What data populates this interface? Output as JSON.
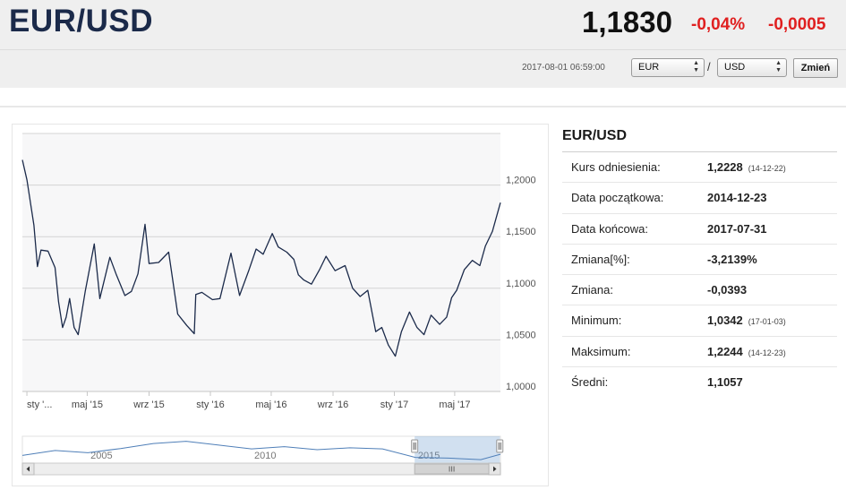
{
  "header": {
    "pair": "EUR/USD",
    "price": "1,1830",
    "change_pct": "-0,04%",
    "change_abs": "-0,0005",
    "timestamp": "2017-08-01 06:59:00",
    "from_currency": "EUR",
    "separator": "/",
    "to_currency": "USD",
    "change_button": "Zmień",
    "accent_color": "#1b2a4a",
    "negative_color": "#e02020"
  },
  "stats": {
    "title": "EUR/USD",
    "rows": [
      {
        "label": "Kurs odniesienia:",
        "value": "1,2228",
        "date": "(14-12-22)"
      },
      {
        "label": "Data początkowa:",
        "value": "2014-12-23",
        "date": ""
      },
      {
        "label": "Data końcowa:",
        "value": "2017-07-31",
        "date": ""
      },
      {
        "label": "Zmiana[%]:",
        "value": "-3,2139%",
        "date": ""
      },
      {
        "label": "Zmiana:",
        "value": "-0,0393",
        "date": ""
      },
      {
        "label": "Minimum:",
        "value": "1,0342",
        "date": "(17-01-03)"
      },
      {
        "label": "Maksimum:",
        "value": "1,2244",
        "date": "(14-12-23)"
      },
      {
        "label": "Średni:",
        "value": "1,1057",
        "date": ""
      }
    ]
  },
  "chart_data": {
    "type": "line",
    "series_color": "#1b2a4a",
    "grid": true,
    "ylim": [
      1.0,
      1.25
    ],
    "y_ticks": [
      "1,0000",
      "1,0500",
      "1,1000",
      "1,1500",
      "1,2000"
    ],
    "y_tick_values": [
      1.0,
      1.05,
      1.1,
      1.15,
      1.2
    ],
    "x_ticks": [
      "sty '...",
      "maj '15",
      "wrz '15",
      "sty '16",
      "maj '16",
      "wrz '16",
      "sty '17",
      "maj '17"
    ],
    "x_tick_dates": [
      "2015-01-01",
      "2015-05-01",
      "2015-09-01",
      "2016-01-01",
      "2016-05-01",
      "2016-09-01",
      "2017-01-01",
      "2017-05-01"
    ],
    "x_start": "2014-12-23",
    "x_end": "2017-07-31",
    "series": [
      {
        "dates": [
          "2014-12-23",
          "2015-01-01",
          "2015-01-08",
          "2015-01-15",
          "2015-01-22",
          "2015-01-29",
          "2015-02-12",
          "2015-02-26",
          "2015-03-05",
          "2015-03-13",
          "2015-03-20",
          "2015-03-27",
          "2015-04-05",
          "2015-04-13",
          "2015-04-27",
          "2015-05-15",
          "2015-05-26",
          "2015-06-15",
          "2015-06-28",
          "2015-07-15",
          "2015-07-28",
          "2015-08-10",
          "2015-08-24",
          "2015-09-01",
          "2015-09-20",
          "2015-10-10",
          "2015-10-28",
          "2015-11-15",
          "2015-11-30",
          "2015-12-03",
          "2015-12-15",
          "2016-01-05",
          "2016-01-20",
          "2016-02-11",
          "2016-02-28",
          "2016-03-18",
          "2016-04-01",
          "2016-04-15",
          "2016-05-03",
          "2016-05-15",
          "2016-06-01",
          "2016-06-15",
          "2016-06-24",
          "2016-07-05",
          "2016-07-20",
          "2016-08-05",
          "2016-08-18",
          "2016-09-05",
          "2016-09-25",
          "2016-10-10",
          "2016-10-25",
          "2016-11-09",
          "2016-11-25",
          "2016-12-07",
          "2016-12-20",
          "2017-01-03",
          "2017-01-15",
          "2017-01-31",
          "2017-02-15",
          "2017-03-01",
          "2017-03-15",
          "2017-04-01",
          "2017-04-15",
          "2017-04-25",
          "2017-05-05",
          "2017-05-20",
          "2017-06-05",
          "2017-06-20",
          "2017-07-01",
          "2017-07-15",
          "2017-07-31"
        ],
        "values": [
          1.2244,
          1.205,
          1.183,
          1.161,
          1.121,
          1.137,
          1.136,
          1.12,
          1.087,
          1.062,
          1.072,
          1.09,
          1.062,
          1.055,
          1.097,
          1.143,
          1.09,
          1.13,
          1.113,
          1.093,
          1.097,
          1.114,
          1.162,
          1.124,
          1.125,
          1.135,
          1.075,
          1.064,
          1.056,
          1.094,
          1.096,
          1.089,
          1.09,
          1.134,
          1.093,
          1.118,
          1.138,
          1.133,
          1.153,
          1.14,
          1.135,
          1.128,
          1.113,
          1.108,
          1.104,
          1.118,
          1.131,
          1.117,
          1.122,
          1.1,
          1.092,
          1.098,
          1.058,
          1.062,
          1.045,
          1.0342,
          1.058,
          1.077,
          1.062,
          1.055,
          1.074,
          1.065,
          1.072,
          1.091,
          1.098,
          1.118,
          1.127,
          1.122,
          1.141,
          1.155,
          1.183
        ]
      }
    ],
    "navigator": {
      "labels": [
        "2005",
        "2010",
        "2015"
      ],
      "label_years": [
        2005,
        2010,
        2015
      ],
      "year_start": 2003,
      "year_end": 2017.6,
      "selection_years": [
        2014.98,
        2017.58
      ],
      "years": [
        2003,
        2004,
        2005,
        2006,
        2007,
        2008,
        2009,
        2010,
        2011,
        2012,
        2013,
        2014,
        2015,
        2016,
        2017,
        2017.6
      ],
      "values": [
        1.15,
        1.28,
        1.22,
        1.33,
        1.46,
        1.52,
        1.42,
        1.32,
        1.38,
        1.3,
        1.35,
        1.32,
        1.1,
        1.08,
        1.04,
        1.18
      ]
    }
  }
}
